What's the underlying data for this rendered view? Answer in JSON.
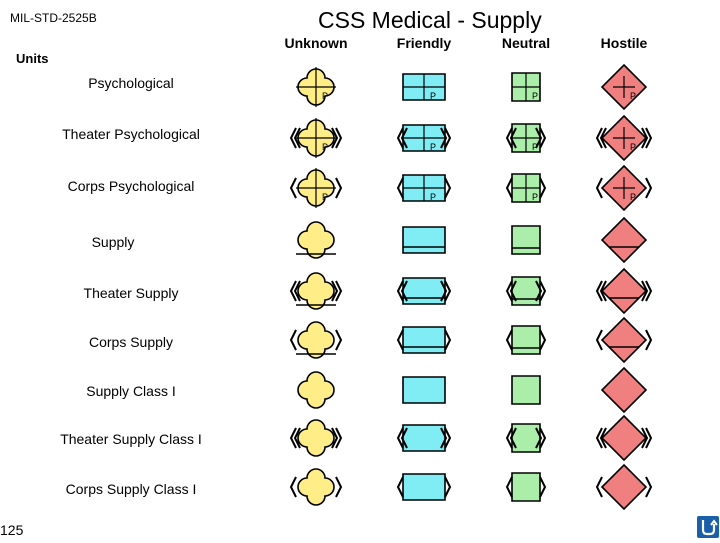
{
  "header": {
    "doc_id": "MIL-STD-2525B",
    "title": "CSS Medical - Supply"
  },
  "columns": [
    "Unknown",
    "Friendly",
    "Neutral",
    "Hostile"
  ],
  "section_label": "Units",
  "rows": [
    {
      "label": "Psychological",
      "frame": "unit",
      "modifier": "letter",
      "letter": "P"
    },
    {
      "label": "Theater Psychological",
      "frame": "theater",
      "modifier": "letter",
      "letter": "P"
    },
    {
      "label": "Corps Psychological",
      "frame": "corps",
      "modifier": "letter",
      "letter": "P"
    },
    {
      "label": "Supply",
      "frame": "unit",
      "modifier": "supply"
    },
    {
      "label": "Theater Supply",
      "frame": "theater",
      "modifier": "supply"
    },
    {
      "label": "Corps Supply",
      "frame": "corps",
      "modifier": "supply"
    },
    {
      "label": "Supply Class I",
      "frame": "unit",
      "modifier": "crescent"
    },
    {
      "label": "Theater Supply Class I",
      "frame": "theater",
      "modifier": "crescent"
    },
    {
      "label": "Corps Supply Class I",
      "frame": "corps",
      "modifier": "crescent"
    }
  ],
  "colors": {
    "unknown": "#ffee88",
    "friendly": "#80ecf4",
    "neutral": "#aaeeaa",
    "hostile": "#f08080",
    "home_button": "#1a5fa8"
  },
  "footer": {
    "page_number": "125",
    "home_icon": "home-return-icon"
  }
}
